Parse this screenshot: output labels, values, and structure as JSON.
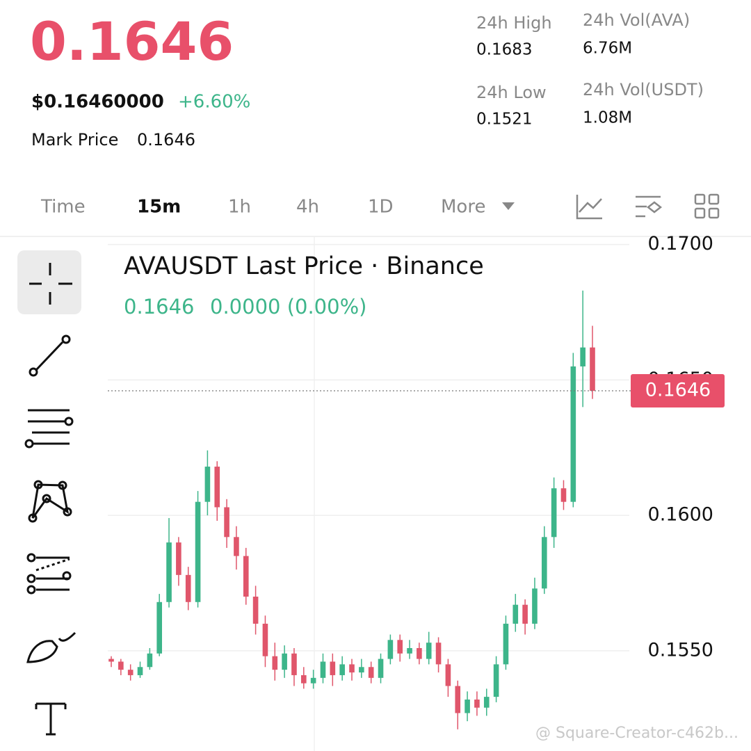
{
  "header": {
    "price": "0.1646",
    "usd_price": "$0.16460000",
    "change": "+6.60%",
    "mark_label": "Mark Price",
    "mark_value": "0.1646"
  },
  "stats": [
    {
      "label": "24h High",
      "value": "0.1683"
    },
    {
      "label": "24h Vol(AVA)",
      "value": "6.76M"
    },
    {
      "label": "24h Low",
      "value": "0.1521"
    },
    {
      "label": "24h Vol(USDT)",
      "value": "1.08M"
    }
  ],
  "tabs": [
    "Time",
    "15m",
    "1h",
    "4h",
    "1D",
    "More"
  ],
  "watermark": "@ Square-Creator-c462b...",
  "chart_data": {
    "type": "candlestick",
    "title": "AVAUSDT Last Price · Binance",
    "legend_values": [
      "0.1646",
      "0.0000 (0.00%)"
    ],
    "last_price": 0.1646,
    "up_color": "#3db58a",
    "down_color": "#e0566b",
    "ylim": [
      0.1513,
      0.1703
    ],
    "yticks": [
      {
        "value": 0.155,
        "label": "0.1550"
      },
      {
        "value": 0.16,
        "label": "0.1600"
      },
      {
        "value": 0.165,
        "label": "0.1650"
      },
      {
        "value": 0.17,
        "label": "0.1700"
      }
    ],
    "grid": true,
    "ohlc": [
      [
        0.1547,
        0.1548,
        0.1544,
        0.1546
      ],
      [
        0.1546,
        0.1547,
        0.1541,
        0.1543
      ],
      [
        0.1543,
        0.1545,
        0.1539,
        0.1541
      ],
      [
        0.1541,
        0.1546,
        0.154,
        0.1544
      ],
      [
        0.1544,
        0.1551,
        0.1543,
        0.1549
      ],
      [
        0.1549,
        0.1571,
        0.1548,
        0.1568
      ],
      [
        0.1568,
        0.1599,
        0.1566,
        0.159
      ],
      [
        0.159,
        0.1592,
        0.1574,
        0.1578
      ],
      [
        0.1578,
        0.1581,
        0.1565,
        0.1568
      ],
      [
        0.1568,
        0.1609,
        0.1566,
        0.1605
      ],
      [
        0.1605,
        0.1624,
        0.16,
        0.1618
      ],
      [
        0.1618,
        0.162,
        0.1598,
        0.1603
      ],
      [
        0.1603,
        0.1606,
        0.1588,
        0.1592
      ],
      [
        0.1592,
        0.1596,
        0.158,
        0.1585
      ],
      [
        0.1585,
        0.1588,
        0.1567,
        0.157
      ],
      [
        0.157,
        0.1574,
        0.1556,
        0.156
      ],
      [
        0.156,
        0.1563,
        0.1544,
        0.1548
      ],
      [
        0.1548,
        0.1553,
        0.1539,
        0.1543
      ],
      [
        0.1543,
        0.1552,
        0.154,
        0.1549
      ],
      [
        0.1549,
        0.1551,
        0.1537,
        0.1541
      ],
      [
        0.1541,
        0.1544,
        0.1536,
        0.1538
      ],
      [
        0.1538,
        0.1543,
        0.1536,
        0.154
      ],
      [
        0.154,
        0.1549,
        0.1538,
        0.1546
      ],
      [
        0.1546,
        0.1549,
        0.1537,
        0.1541
      ],
      [
        0.1541,
        0.1548,
        0.1539,
        0.1545
      ],
      [
        0.1545,
        0.1547,
        0.1539,
        0.1542
      ],
      [
        0.1542,
        0.1547,
        0.154,
        0.1544
      ],
      [
        0.1544,
        0.1546,
        0.1538,
        0.154
      ],
      [
        0.154,
        0.1549,
        0.1538,
        0.1547
      ],
      [
        0.1547,
        0.1556,
        0.1545,
        0.1554
      ],
      [
        0.1554,
        0.1556,
        0.1546,
        0.1549
      ],
      [
        0.1549,
        0.1554,
        0.1547,
        0.1551
      ],
      [
        0.1551,
        0.1553,
        0.1545,
        0.1547
      ],
      [
        0.1547,
        0.1557,
        0.1545,
        0.1553
      ],
      [
        0.1553,
        0.1555,
        0.1542,
        0.1545
      ],
      [
        0.1545,
        0.1547,
        0.1533,
        0.1537
      ],
      [
        0.1537,
        0.1539,
        0.1521,
        0.1527
      ],
      [
        0.1527,
        0.1535,
        0.1524,
        0.1532
      ],
      [
        0.1532,
        0.1535,
        0.1526,
        0.1529
      ],
      [
        0.1529,
        0.1536,
        0.1526,
        0.1533
      ],
      [
        0.1533,
        0.1548,
        0.1531,
        0.1545
      ],
      [
        0.1545,
        0.1563,
        0.1543,
        0.156
      ],
      [
        0.156,
        0.1571,
        0.1557,
        0.1567
      ],
      [
        0.1567,
        0.1569,
        0.1556,
        0.156
      ],
      [
        0.156,
        0.1577,
        0.1558,
        0.1573
      ],
      [
        0.1573,
        0.1596,
        0.1571,
        0.1592
      ],
      [
        0.1592,
        0.1614,
        0.1588,
        0.161
      ],
      [
        0.161,
        0.1613,
        0.1602,
        0.1605
      ],
      [
        0.1605,
        0.166,
        0.1603,
        0.1655
      ],
      [
        0.1655,
        0.1683,
        0.164,
        0.1662
      ],
      [
        0.1662,
        0.167,
        0.1643,
        0.1646
      ]
    ]
  }
}
